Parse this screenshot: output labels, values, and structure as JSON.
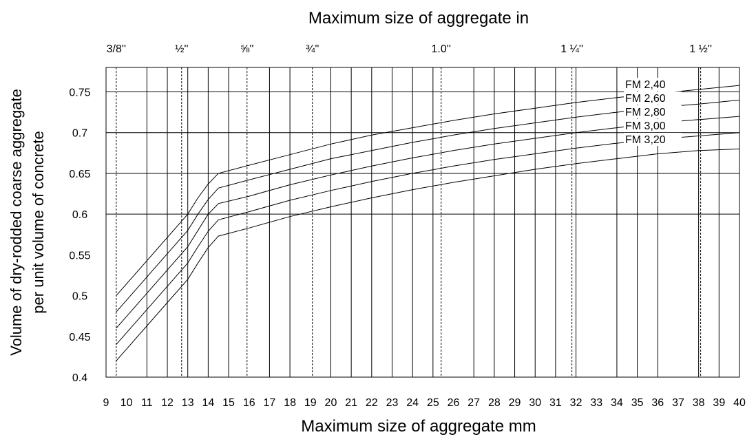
{
  "chart_data": {
    "type": "line",
    "title": "",
    "top_axis_label": "Maximum size of aggregate in",
    "xlabel": "Maximum size of aggregate mm",
    "ylabel": "Volume of dry-rodded coarse aggregate",
    "ylabel_line2": "per unit volume of concrete",
    "xlim": [
      9,
      40
    ],
    "ylim": [
      0.4,
      0.78
    ],
    "x_ticks": [
      9,
      10,
      11,
      12,
      13,
      14,
      15,
      16,
      17,
      18,
      19,
      20,
      21,
      22,
      23,
      24,
      25,
      26,
      27,
      28,
      29,
      30,
      31,
      32,
      33,
      34,
      35,
      36,
      37,
      38,
      39,
      40
    ],
    "y_ticks": [
      {
        "value": 0.4,
        "label": "0.4"
      },
      {
        "value": 0.45,
        "label": "0.45"
      },
      {
        "value": 0.5,
        "label": "0.5"
      },
      {
        "value": 0.55,
        "label": "0.55"
      },
      {
        "value": 0.6,
        "label": "0.6"
      },
      {
        "value": 0.65,
        "label": "0.65"
      },
      {
        "value": 0.7,
        "label": "0.7"
      },
      {
        "value": 0.75,
        "label": "0.75"
      }
    ],
    "grid": {
      "horizontal": [
        0.6,
        0.65,
        0.7,
        0.75
      ],
      "vertical_mm": [
        11,
        12,
        13,
        14,
        15,
        17,
        18,
        20,
        21,
        22,
        23,
        24,
        25,
        27,
        28,
        29,
        30,
        31,
        32,
        34,
        35,
        36,
        38,
        39
      ],
      "dashed_mm": [
        9.5,
        12.7,
        15.9,
        19.1,
        25.4,
        31.8,
        38.1
      ]
    },
    "inch_ticks": [
      {
        "mm": 9.5,
        "label": "3/8''"
      },
      {
        "mm": 12.7,
        "label": "½''"
      },
      {
        "mm": 15.9,
        "label": "⅝''"
      },
      {
        "mm": 19.1,
        "label": "¾''"
      },
      {
        "mm": 25.4,
        "label": "1.0''"
      },
      {
        "mm": 31.8,
        "label": "1 ¼''"
      },
      {
        "mm": 38.1,
        "label": "1 ½''"
      }
    ],
    "series": [
      {
        "name": "FM 2,40",
        "x": [
          9.5,
          13,
          13.5,
          14,
          14.5,
          16,
          18,
          20,
          22,
          24,
          26,
          28,
          30,
          32,
          34,
          36,
          38,
          40
        ],
        "y": [
          0.5,
          0.6,
          0.62,
          0.637,
          0.65,
          0.66,
          0.673,
          0.686,
          0.697,
          0.706,
          0.715,
          0.723,
          0.73,
          0.737,
          0.743,
          0.748,
          0.753,
          0.758
        ]
      },
      {
        "name": "FM 2,60",
        "x": [
          9.5,
          13,
          13.5,
          14,
          14.5,
          16,
          18,
          20,
          22,
          24,
          26,
          28,
          30,
          32,
          34,
          36,
          38,
          40
        ],
        "y": [
          0.48,
          0.58,
          0.6,
          0.618,
          0.632,
          0.642,
          0.655,
          0.668,
          0.678,
          0.688,
          0.697,
          0.705,
          0.712,
          0.719,
          0.725,
          0.731,
          0.735,
          0.74
        ]
      },
      {
        "name": "FM 2,80",
        "x": [
          9.5,
          13,
          13.5,
          14,
          14.5,
          16,
          18,
          20,
          22,
          24,
          26,
          28,
          30,
          32,
          34,
          36,
          38,
          40
        ],
        "y": [
          0.46,
          0.56,
          0.58,
          0.6,
          0.613,
          0.622,
          0.636,
          0.648,
          0.659,
          0.669,
          0.678,
          0.686,
          0.693,
          0.7,
          0.706,
          0.712,
          0.716,
          0.72
        ]
      },
      {
        "name": "FM 3,00",
        "x": [
          9.5,
          13,
          13.5,
          14,
          14.5,
          16,
          18,
          20,
          22,
          24,
          26,
          28,
          30,
          32,
          34,
          36,
          38,
          40
        ],
        "y": [
          0.44,
          0.54,
          0.56,
          0.579,
          0.593,
          0.603,
          0.617,
          0.629,
          0.64,
          0.65,
          0.659,
          0.667,
          0.674,
          0.681,
          0.687,
          0.692,
          0.696,
          0.7
        ]
      },
      {
        "name": "FM 3,20",
        "x": [
          9.5,
          13,
          13.5,
          14,
          14.5,
          16,
          18,
          20,
          22,
          24,
          26,
          28,
          30,
          32,
          34,
          36,
          38,
          40
        ],
        "y": [
          0.42,
          0.52,
          0.54,
          0.559,
          0.573,
          0.583,
          0.597,
          0.609,
          0.62,
          0.63,
          0.639,
          0.647,
          0.655,
          0.662,
          0.668,
          0.674,
          0.678,
          0.68
        ]
      }
    ],
    "series_label_positions": "top-right"
  }
}
